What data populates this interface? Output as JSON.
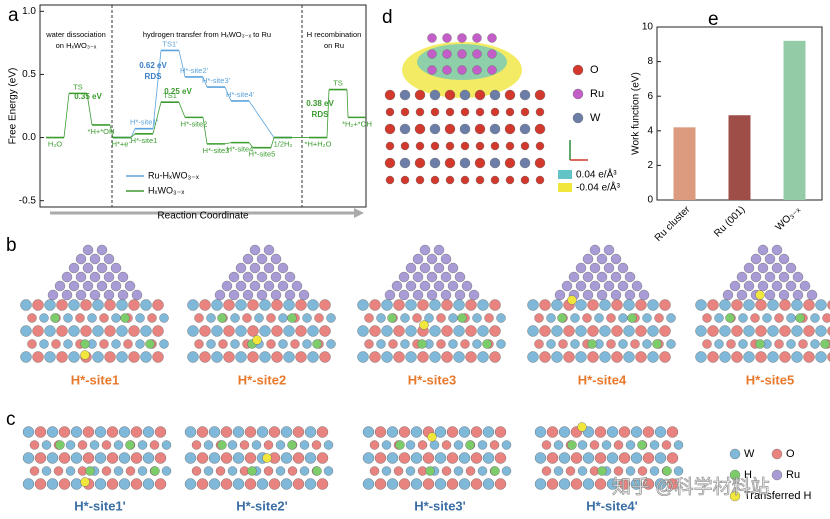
{
  "chart_data": [
    {
      "panel": "a",
      "type": "step",
      "y_label": "Free Energy (eV)",
      "x_label": "Reaction Coordinate",
      "ylim": [
        -0.55,
        1.05
      ],
      "yticks": [
        {
          "value": 1,
          "label": "1.0"
        },
        0.5,
        {
          "value": 0,
          "label": "0.0"
        },
        -0.5
      ],
      "sections": [
        [
          "water dissociation",
          "on HₓWO₃₋ₓ"
        ],
        [
          "hydrogen transfer from HₓWO₃₋ₓ to Ru"
        ],
        [
          "H recombination",
          "on Ru"
        ]
      ],
      "categories": [
        null,
        null,
        null,
        null,
        null,
        null,
        null,
        null,
        null,
        null,
        null,
        null,
        null,
        null
      ],
      "series": [
        {
          "name": "Ru-HₓWO₃₋ₓ",
          "color": "#5ba3dc",
          "values": [
            null,
            null,
            null,
            0.0,
            0.07,
            0.69,
            0.48,
            0.4,
            0.29,
            null,
            0.0,
            null,
            null,
            null
          ],
          "point_labels": [
            null,
            null,
            null,
            null,
            "H*-site1'",
            "TS1'",
            "H*-site2'",
            "H*-site3'",
            "H*-site4'",
            null,
            null,
            null,
            null,
            null
          ]
        },
        {
          "name": "HₓWO₃₋ₓ",
          "color": "#3b9b2f",
          "values": [
            0.0,
            0.35,
            0.1,
            0.0,
            0.03,
            0.28,
            0.16,
            -0.05,
            -0.04,
            -0.08,
            0.0,
            0.0,
            0.38,
            0.16
          ],
          "point_labels": [
            "H₂O",
            "TS",
            "*H+*OH",
            "H*+e⁻",
            "H*-site1",
            "TS1",
            "H*-site2",
            "H*-site3",
            "H*-site4",
            "H*-site5",
            "1/2H₂",
            "*H+H₂O",
            "TS",
            "*H₂+*OH"
          ]
        }
      ],
      "annotations": [
        {
          "text": "0.35 eV",
          "color": "#3b9b2f"
        },
        {
          "text": "0.62 eV",
          "color": "#3a7fc4"
        },
        {
          "text": "RDS",
          "color": "#3a7fc4"
        },
        {
          "text": "0.25 eV",
          "color": "#3b9b2f"
        },
        {
          "text": "0.38 eV",
          "color": "#3b9b2f"
        },
        {
          "text": "RDS",
          "color": "#3b9b2f"
        }
      ]
    },
    {
      "panel": "e",
      "type": "bar",
      "y_label": "Work function (eV)",
      "categories": [
        "Ru cluster",
        "Ru (001)",
        "WO₃₋ₓ"
      ],
      "values": [
        4.2,
        4.9,
        9.2
      ],
      "colors": [
        "#dc9a7e",
        "#9e4d47",
        "#93cba7"
      ],
      "ylim": [
        0,
        10
      ],
      "yticks": [
        0,
        2,
        4,
        6,
        8,
        10
      ]
    }
  ],
  "panel_d": {
    "panel": "d",
    "legend": [
      "O",
      "Ru",
      "W"
    ],
    "density_legend": [
      "0.04 e/Å³",
      "-0.04 e/Å³"
    ]
  },
  "panel_b": {
    "panel": "b",
    "labels": [
      "H*-site1",
      "H*-site2",
      "H*-site3",
      "H*-site4",
      "H*-site5"
    ]
  },
  "panel_c": {
    "panel": "c",
    "labels": [
      "H*-site1'",
      "H*-site2'",
      "H*-site3'",
      "H*-site4'"
    ],
    "legend": [
      "W",
      "O",
      "H",
      "Ru",
      "Transferred H"
    ]
  },
  "watermark": "知乎 @科学材料站"
}
